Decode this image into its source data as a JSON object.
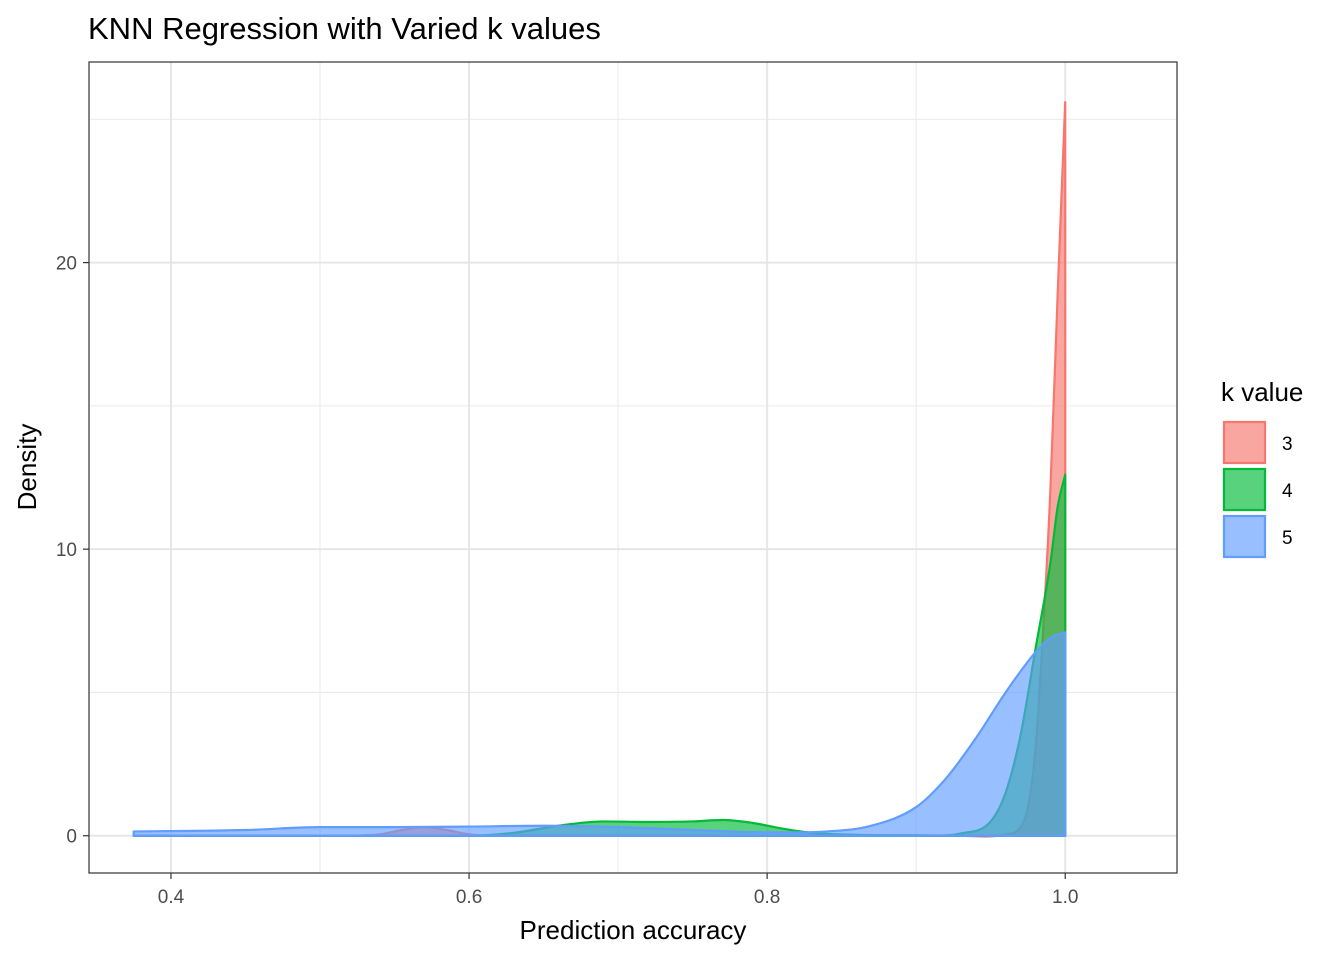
{
  "chart_data": {
    "type": "area",
    "title": "KNN Regression with Varied k values",
    "xlabel": "Prediction accuracy",
    "ylabel": "Density",
    "xlim": [
      0.345,
      1.075
    ],
    "ylim": [
      -1.3,
      27.0
    ],
    "x_ticks": [
      0.4,
      0.6,
      0.8,
      1.0
    ],
    "x_tick_labels": [
      "0.4",
      "0.6",
      "0.8",
      "1.0"
    ],
    "x_minor": [
      0.5,
      0.7,
      0.9
    ],
    "y_ticks": [
      0,
      10,
      20
    ],
    "y_tick_labels": [
      "0",
      "10",
      "20"
    ],
    "y_minor": [
      5,
      15,
      25
    ],
    "grid": true,
    "legend": {
      "title": "k value",
      "position": "right"
    },
    "series": [
      {
        "name": "3",
        "color": "#F8766D",
        "points": [
          [
            0.375,
            0
          ],
          [
            0.5,
            0
          ],
          [
            0.54,
            0.05
          ],
          [
            0.555,
            0.2
          ],
          [
            0.57,
            0.3
          ],
          [
            0.585,
            0.2
          ],
          [
            0.6,
            0.05
          ],
          [
            0.62,
            0
          ],
          [
            0.93,
            0
          ],
          [
            0.96,
            0.05
          ],
          [
            0.97,
            0.3
          ],
          [
            0.975,
            1
          ],
          [
            0.98,
            3
          ],
          [
            0.985,
            7
          ],
          [
            0.99,
            12
          ],
          [
            0.995,
            19
          ],
          [
            1.0,
            25.6
          ],
          [
            1.0,
            0
          ]
        ]
      },
      {
        "name": "4",
        "color": "#00BA38",
        "points": [
          [
            0.375,
            0
          ],
          [
            0.6,
            0
          ],
          [
            0.63,
            0.1
          ],
          [
            0.66,
            0.35
          ],
          [
            0.69,
            0.5
          ],
          [
            0.72,
            0.48
          ],
          [
            0.75,
            0.5
          ],
          [
            0.77,
            0.55
          ],
          [
            0.79,
            0.45
          ],
          [
            0.81,
            0.25
          ],
          [
            0.83,
            0.1
          ],
          [
            0.86,
            0.03
          ],
          [
            0.9,
            0.02
          ],
          [
            0.93,
            0.08
          ],
          [
            0.95,
            0.5
          ],
          [
            0.96,
            1.5
          ],
          [
            0.97,
            3.5
          ],
          [
            0.98,
            6.5
          ],
          [
            0.99,
            9.5
          ],
          [
            0.995,
            11.5
          ],
          [
            1.0,
            12.6
          ],
          [
            1.0,
            0
          ]
        ]
      },
      {
        "name": "5",
        "color": "#619CFF",
        "points": [
          [
            0.375,
            0.15
          ],
          [
            0.45,
            0.2
          ],
          [
            0.5,
            0.3
          ],
          [
            0.55,
            0.3
          ],
          [
            0.6,
            0.32
          ],
          [
            0.65,
            0.35
          ],
          [
            0.7,
            0.3
          ],
          [
            0.75,
            0.2
          ],
          [
            0.8,
            0.12
          ],
          [
            0.84,
            0.15
          ],
          [
            0.87,
            0.35
          ],
          [
            0.9,
            1
          ],
          [
            0.92,
            2
          ],
          [
            0.94,
            3.4
          ],
          [
            0.96,
            5
          ],
          [
            0.98,
            6.4
          ],
          [
            0.99,
            6.9
          ],
          [
            1.0,
            7.1
          ],
          [
            1.0,
            0
          ],
          [
            0.375,
            0
          ]
        ]
      }
    ]
  }
}
